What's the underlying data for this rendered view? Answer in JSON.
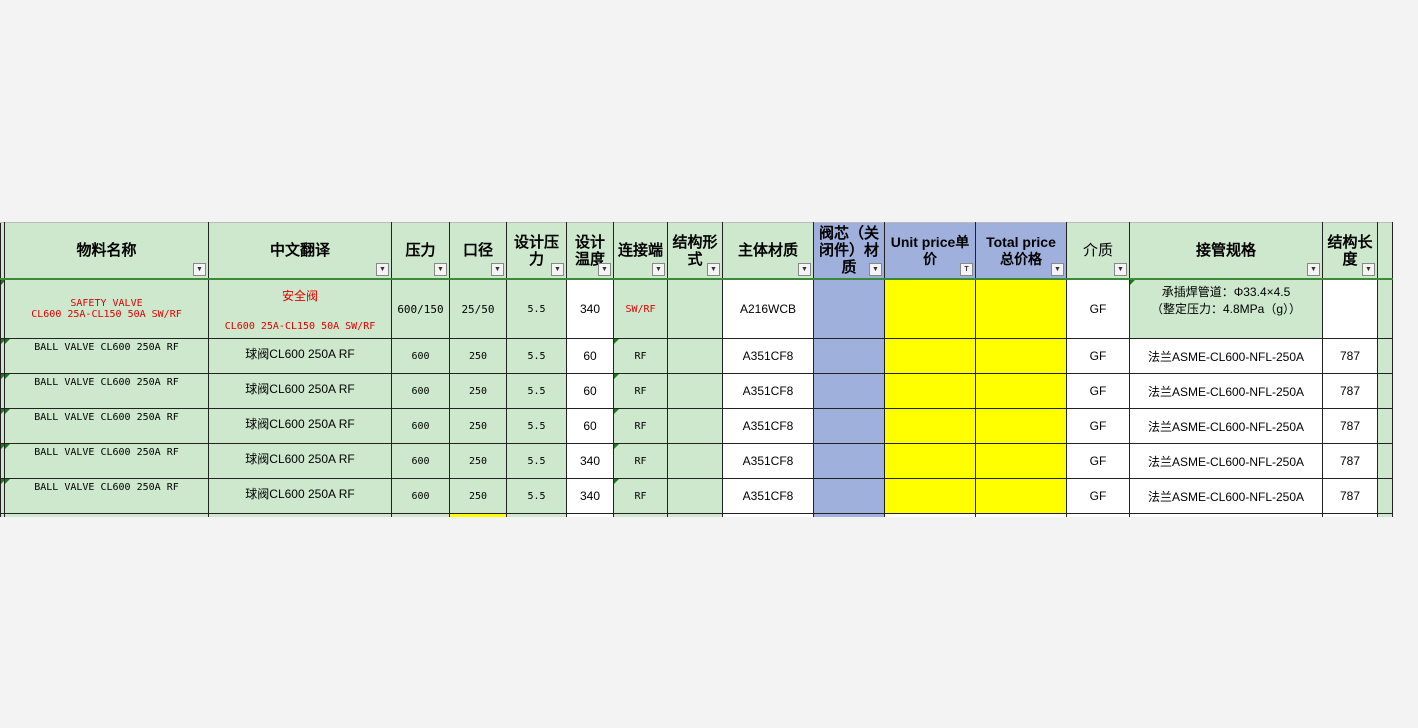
{
  "colors": {
    "header_green": "#cde8cd",
    "blue": "#9fb0dd",
    "yellow": "#ffff00"
  },
  "headers": [
    "物料名称",
    "中文翻译",
    "压力",
    "口径",
    "设计压力",
    "设计温度",
    "连接端",
    "结构形式",
    "主体材质",
    "阀芯（关闭件）材质",
    "Unit price单价",
    "Total price总价格",
    "介质",
    "接管规格",
    "结构长度"
  ],
  "header_lines": {
    "design_pressure": [
      "设计压",
      "力"
    ],
    "design_temp": [
      "设计",
      "温度"
    ],
    "structure": [
      "结构形",
      "式"
    ],
    "core": [
      "阀芯（关",
      "闭件）材",
      "质"
    ],
    "unit": [
      "Unit price单",
      "价"
    ],
    "total": [
      "Total price",
      "总价格"
    ],
    "length": [
      "结构长",
      "度"
    ]
  },
  "rows": [
    {
      "name": [
        "SAFETY VALVE",
        "CL600 25A-CL150 50A SW/RF"
      ],
      "cn": [
        "安全阀",
        "CL600 25A-CL150 50A SW/RF"
      ],
      "pressure": "600/150",
      "dn": "25/50",
      "dp": "5.5",
      "dt": "340",
      "conn": "SW/RF",
      "struct": "",
      "body": "A216WCB",
      "core": "",
      "unit": "",
      "total": "",
      "medium": "GF",
      "pipe": [
        "承插焊管道：Φ33.4×4.5",
        "（整定压力：4.8MPa（g））"
      ],
      "length": ""
    },
    {
      "name": "BALL VALVE CL600 250A  RF",
      "cn": "球阀CL600 250A RF",
      "pressure": "600",
      "dn": "250",
      "dp": "5.5",
      "dt": "60",
      "conn": "RF",
      "struct": "",
      "body": "A351CF8",
      "core": "",
      "unit": "",
      "total": "",
      "medium": "GF",
      "pipe": "法兰ASME-CL600-NFL-250A",
      "length": "787"
    },
    {
      "name": "BALL VALVE CL600 250A  RF",
      "cn": "球阀CL600 250A RF",
      "pressure": "600",
      "dn": "250",
      "dp": "5.5",
      "dt": "60",
      "conn": "RF",
      "struct": "",
      "body": "A351CF8",
      "core": "",
      "unit": "",
      "total": "",
      "medium": "GF",
      "pipe": "法兰ASME-CL600-NFL-250A",
      "length": "787"
    },
    {
      "name": "BALL VALVE CL600 250A  RF",
      "cn": "球阀CL600 250A RF",
      "pressure": "600",
      "dn": "250",
      "dp": "5.5",
      "dt": "60",
      "conn": "RF",
      "struct": "",
      "body": "A351CF8",
      "core": "",
      "unit": "",
      "total": "",
      "medium": "GF",
      "pipe": "法兰ASME-CL600-NFL-250A",
      "length": "787"
    },
    {
      "name": "BALL VALVE CL600 250A  RF",
      "cn": "球阀CL600 250A RF",
      "pressure": "600",
      "dn": "250",
      "dp": "5.5",
      "dt": "340",
      "conn": "RF",
      "struct": "",
      "body": "A351CF8",
      "core": "",
      "unit": "",
      "total": "",
      "medium": "GF",
      "pipe": "法兰ASME-CL600-NFL-250A",
      "length": "787"
    },
    {
      "name": "BALL VALVE CL600 250A  RF",
      "cn": "球阀CL600 250A RF",
      "pressure": "600",
      "dn": "250",
      "dp": "5.5",
      "dt": "340",
      "conn": "RF",
      "struct": "",
      "body": "A351CF8",
      "core": "",
      "unit": "",
      "total": "",
      "medium": "GF",
      "pipe": "法兰ASME-CL600-NFL-250A",
      "length": "787"
    }
  ]
}
